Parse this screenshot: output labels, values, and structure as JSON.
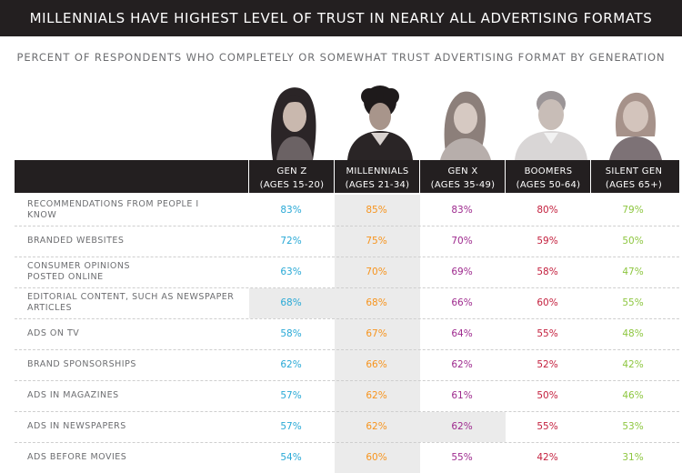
{
  "title": "MILLENNIALS HAVE HIGHEST LEVEL OF TRUST IN NEARLY ALL ADVERTISING FORMATS",
  "subtitle": "PERCENT OF RESPONDENTS WHO COMPLETELY OR SOMEWHAT TRUST ADVERTISING FORMAT BY GENERATION",
  "colors": {
    "gen_z": "#29a9d6",
    "millennials": "#f7941d",
    "gen_x": "#9e2a8e",
    "boomers": "#c4213f",
    "silent_gen": "#8dc63f"
  },
  "chart_data": {
    "type": "table",
    "title": "MILLENNIALS HAVE HIGHEST LEVEL OF TRUST IN NEARLY ALL ADVERTISING FORMATS",
    "subtitle": "PERCENT OF RESPONDENTS WHO COMPLETELY OR SOMEWHAT TRUST ADVERTISING FORMAT BY GENERATION",
    "columns": [
      {
        "name": "GEN Z",
        "ages": "(AGES 15-20)"
      },
      {
        "name": "MILLENNIALS",
        "ages": "(AGES 21-34)"
      },
      {
        "name": "GEN X",
        "ages": "(AGES 35-49)"
      },
      {
        "name": "BOOMERS",
        "ages": "(AGES 50-64)"
      },
      {
        "name": "SILENT GEN",
        "ages": "(AGES 65+)"
      }
    ],
    "rows": [
      {
        "label": [
          "RECOMMENDATIONS FROM PEOPLE I",
          "KNOW"
        ],
        "values": [
          "83%",
          "85%",
          "83%",
          "80%",
          "79%"
        ]
      },
      {
        "label": [
          "BRANDED WEBSITES"
        ],
        "values": [
          "72%",
          "75%",
          "70%",
          "59%",
          "50%"
        ]
      },
      {
        "label": [
          "CONSUMER OPINIONS",
          "POSTED ONLINE"
        ],
        "values": [
          "63%",
          "70%",
          "69%",
          "58%",
          "47%"
        ]
      },
      {
        "label": [
          "EDITORIAL CONTENT, SUCH AS NEWSPAPER",
          "ARTICLES"
        ],
        "values": [
          "68%",
          "68%",
          "66%",
          "60%",
          "55%"
        ]
      },
      {
        "label": [
          "ADS ON TV"
        ],
        "values": [
          "58%",
          "67%",
          "64%",
          "55%",
          "48%"
        ]
      },
      {
        "label": [
          "BRAND SPONSORSHIPS"
        ],
        "values": [
          "62%",
          "66%",
          "62%",
          "52%",
          "42%"
        ]
      },
      {
        "label": [
          "ADS IN MAGAZINES"
        ],
        "values": [
          "57%",
          "62%",
          "61%",
          "50%",
          "46%"
        ]
      },
      {
        "label": [
          "ADS IN NEWSPAPERS"
        ],
        "values": [
          "57%",
          "62%",
          "62%",
          "55%",
          "53%"
        ]
      },
      {
        "label": [
          "ADS BEFORE MOVIES"
        ],
        "values": [
          "54%",
          "60%",
          "55%",
          "42%",
          "31%"
        ]
      }
    ],
    "highlighted_cells": [
      {
        "row": 3,
        "col": 0
      },
      {
        "row": 7,
        "col": 2
      }
    ],
    "highlighted_column": 1
  }
}
